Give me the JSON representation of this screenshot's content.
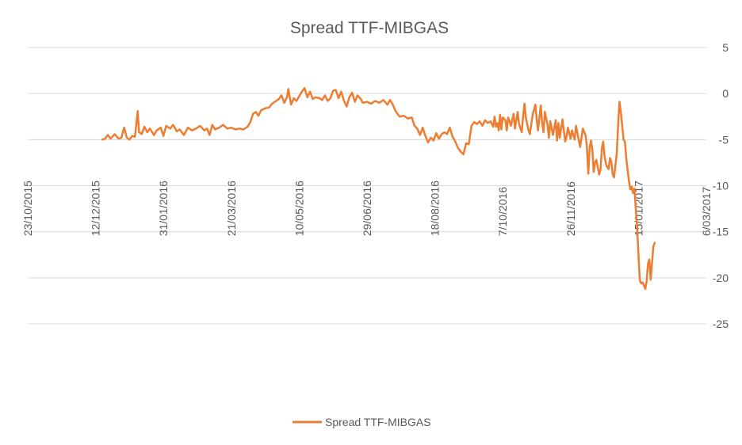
{
  "chart_data": {
    "type": "line",
    "title": "Spread TTF-MIBGAS",
    "xlabel": "",
    "ylabel": "",
    "ylim": [
      -25,
      5
    ],
    "xlim": [
      "2015-10-23",
      "2017-03-06"
    ],
    "y_ticks": [
      5,
      0,
      -5,
      -10,
      -15,
      -20,
      -25
    ],
    "x_ticks": [
      {
        "date": "2015-10-23",
        "label": "23/10/2015"
      },
      {
        "date": "2015-12-12",
        "label": "12/12/2015"
      },
      {
        "date": "2016-01-31",
        "label": "31/01/2016"
      },
      {
        "date": "2016-03-21",
        "label": "21/03/2016"
      },
      {
        "date": "2016-05-10",
        "label": "10/05/2016"
      },
      {
        "date": "2016-06-29",
        "label": "29/06/2016"
      },
      {
        "date": "2016-08-18",
        "label": "18/08/2016"
      },
      {
        "date": "2016-10-07",
        "label": "7/10/2016"
      },
      {
        "date": "2016-11-26",
        "label": "26/11/2016"
      },
      {
        "date": "2017-01-15",
        "label": "15/01/2017"
      },
      {
        "date": "2017-03-06",
        "label": "6/03/2017"
      }
    ],
    "grid": true,
    "legend_position": "bottom",
    "color": "#ED7D31",
    "series": [
      {
        "name": "Spread TTF-MIBGAS",
        "points": [
          [
            "2015-12-17",
            -5.0
          ],
          [
            "2015-12-19",
            -4.9
          ],
          [
            "2015-12-21",
            -4.5
          ],
          [
            "2015-12-23",
            -4.9
          ],
          [
            "2015-12-26",
            -4.4
          ],
          [
            "2015-12-29",
            -4.9
          ],
          [
            "2015-12-31",
            -4.8
          ],
          [
            "2016-01-02",
            -3.7
          ],
          [
            "2016-01-04",
            -4.8
          ],
          [
            "2016-01-06",
            -5.0
          ],
          [
            "2016-01-08",
            -4.6
          ],
          [
            "2016-01-10",
            -4.7
          ],
          [
            "2016-01-12",
            -1.9
          ],
          [
            "2016-01-13",
            -4.2
          ],
          [
            "2016-01-15",
            -4.4
          ],
          [
            "2016-01-17",
            -3.6
          ],
          [
            "2016-01-19",
            -4.2
          ],
          [
            "2016-01-21",
            -3.8
          ],
          [
            "2016-01-24",
            -4.5
          ],
          [
            "2016-01-26",
            -4.0
          ],
          [
            "2016-01-29",
            -3.7
          ],
          [
            "2016-01-31",
            -4.6
          ],
          [
            "2016-02-02",
            -3.5
          ],
          [
            "2016-02-05",
            -3.8
          ],
          [
            "2016-02-07",
            -3.4
          ],
          [
            "2016-02-10",
            -4.1
          ],
          [
            "2016-02-12",
            -3.9
          ],
          [
            "2016-02-15",
            -4.5
          ],
          [
            "2016-02-18",
            -3.7
          ],
          [
            "2016-02-21",
            -4.0
          ],
          [
            "2016-02-24",
            -3.8
          ],
          [
            "2016-02-27",
            -3.5
          ],
          [
            "2016-03-01",
            -4.0
          ],
          [
            "2016-03-03",
            -3.8
          ],
          [
            "2016-03-05",
            -4.5
          ],
          [
            "2016-03-07",
            -3.4
          ],
          [
            "2016-03-09",
            -3.9
          ],
          [
            "2016-03-12",
            -3.7
          ],
          [
            "2016-03-15",
            -3.4
          ],
          [
            "2016-03-18",
            -3.8
          ],
          [
            "2016-03-21",
            -3.7
          ],
          [
            "2016-03-24",
            -3.9
          ],
          [
            "2016-03-27",
            -3.8
          ],
          [
            "2016-03-30",
            -3.9
          ],
          [
            "2016-04-02",
            -3.6
          ],
          [
            "2016-04-04",
            -3.1
          ],
          [
            "2016-04-06",
            -2.2
          ],
          [
            "2016-04-08",
            -2.0
          ],
          [
            "2016-04-10",
            -2.4
          ],
          [
            "2016-04-12",
            -1.8
          ],
          [
            "2016-04-15",
            -1.6
          ],
          [
            "2016-04-18",
            -1.5
          ],
          [
            "2016-04-20",
            -1.1
          ],
          [
            "2016-04-23",
            -0.8
          ],
          [
            "2016-04-25",
            -0.6
          ],
          [
            "2016-04-27",
            -0.2
          ],
          [
            "2016-04-29",
            -1.0
          ],
          [
            "2016-05-01",
            -0.4
          ],
          [
            "2016-05-02",
            0.5
          ],
          [
            "2016-05-04",
            -1.2
          ],
          [
            "2016-05-06",
            -0.5
          ],
          [
            "2016-05-08",
            -0.8
          ],
          [
            "2016-05-10",
            -0.3
          ],
          [
            "2016-05-12",
            0.2
          ],
          [
            "2016-05-14",
            0.6
          ],
          [
            "2016-05-16",
            -0.4
          ],
          [
            "2016-05-18",
            0.2
          ],
          [
            "2016-05-20",
            -0.6
          ],
          [
            "2016-05-22",
            -0.4
          ],
          [
            "2016-05-25",
            -0.5
          ],
          [
            "2016-05-27",
            -0.7
          ],
          [
            "2016-05-29",
            -0.2
          ],
          [
            "2016-05-31",
            -0.8
          ],
          [
            "2016-06-02",
            -0.5
          ],
          [
            "2016-06-04",
            0.3
          ],
          [
            "2016-06-06",
            0.4
          ],
          [
            "2016-06-08",
            -0.5
          ],
          [
            "2016-06-10",
            0.2
          ],
          [
            "2016-06-12",
            -0.8
          ],
          [
            "2016-06-14",
            -1.4
          ],
          [
            "2016-06-16",
            -0.4
          ],
          [
            "2016-06-18",
            0.1
          ],
          [
            "2016-06-20",
            -0.9
          ],
          [
            "2016-06-22",
            -0.2
          ],
          [
            "2016-06-24",
            -0.5
          ],
          [
            "2016-06-26",
            -1.0
          ],
          [
            "2016-06-29",
            -0.9
          ],
          [
            "2016-07-02",
            -1.1
          ],
          [
            "2016-07-05",
            -0.8
          ],
          [
            "2016-07-08",
            -1.0
          ],
          [
            "2016-07-11",
            -0.7
          ],
          [
            "2016-07-14",
            -1.2
          ],
          [
            "2016-07-16",
            -0.7
          ],
          [
            "2016-07-18",
            -1.2
          ],
          [
            "2016-07-20",
            -1.9
          ],
          [
            "2016-07-23",
            -2.5
          ],
          [
            "2016-07-26",
            -2.4
          ],
          [
            "2016-07-29",
            -2.7
          ],
          [
            "2016-08-01",
            -2.6
          ],
          [
            "2016-08-03",
            -3.5
          ],
          [
            "2016-08-05",
            -3.8
          ],
          [
            "2016-08-07",
            -4.5
          ],
          [
            "2016-08-09",
            -3.7
          ],
          [
            "2016-08-11",
            -4.6
          ],
          [
            "2016-08-13",
            -5.3
          ],
          [
            "2016-08-15",
            -4.8
          ],
          [
            "2016-08-17",
            -5.1
          ],
          [
            "2016-08-19",
            -4.3
          ],
          [
            "2016-08-21",
            -4.9
          ],
          [
            "2016-08-23",
            -4.4
          ],
          [
            "2016-08-25",
            -4.2
          ],
          [
            "2016-08-27",
            -4.4
          ],
          [
            "2016-08-29",
            -3.7
          ],
          [
            "2016-08-31",
            -4.7
          ],
          [
            "2016-09-02",
            -5.2
          ],
          [
            "2016-09-04",
            -5.9
          ],
          [
            "2016-09-06",
            -6.3
          ],
          [
            "2016-09-08",
            -6.6
          ],
          [
            "2016-09-10",
            -5.4
          ],
          [
            "2016-09-12",
            -5.5
          ],
          [
            "2016-09-14",
            -3.5
          ],
          [
            "2016-09-16",
            -3.1
          ],
          [
            "2016-09-18",
            -3.3
          ],
          [
            "2016-09-20",
            -3.0
          ],
          [
            "2016-09-22",
            -3.5
          ],
          [
            "2016-09-24",
            -2.9
          ],
          [
            "2016-09-26",
            -3.2
          ],
          [
            "2016-09-28",
            -3.0
          ],
          [
            "2016-09-30",
            -3.6
          ],
          [
            "2016-10-01",
            -2.5
          ],
          [
            "2016-10-02",
            -3.6
          ],
          [
            "2016-10-03",
            -3.2
          ],
          [
            "2016-10-04",
            -4.0
          ],
          [
            "2016-10-05",
            -2.3
          ],
          [
            "2016-10-06",
            -3.9
          ],
          [
            "2016-10-07",
            -2.6
          ],
          [
            "2016-10-09",
            -2.9
          ],
          [
            "2016-10-10",
            -4.0
          ],
          [
            "2016-10-11",
            -2.6
          ],
          [
            "2016-10-12",
            -3.0
          ],
          [
            "2016-10-13",
            -3.5
          ],
          [
            "2016-10-15",
            -2.2
          ],
          [
            "2016-10-16",
            -3.8
          ],
          [
            "2016-10-18",
            -2.0
          ],
          [
            "2016-10-19",
            -3.3
          ],
          [
            "2016-10-21",
            -4.2
          ],
          [
            "2016-10-22",
            -2.4
          ],
          [
            "2016-10-23",
            -1.1
          ],
          [
            "2016-10-24",
            -2.6
          ],
          [
            "2016-10-26",
            -4.0
          ],
          [
            "2016-10-27",
            -4.4
          ],
          [
            "2016-10-29",
            -2.3
          ],
          [
            "2016-10-31",
            -1.2
          ],
          [
            "2016-11-01",
            -2.8
          ],
          [
            "2016-11-02",
            -4.0
          ],
          [
            "2016-11-04",
            -1.3
          ],
          [
            "2016-11-05",
            -3.1
          ],
          [
            "2016-11-06",
            -4.2
          ],
          [
            "2016-11-07",
            -2.0
          ],
          [
            "2016-11-09",
            -3.4
          ],
          [
            "2016-11-10",
            -4.8
          ],
          [
            "2016-11-11",
            -3.0
          ],
          [
            "2016-11-13",
            -4.5
          ],
          [
            "2016-11-15",
            -2.9
          ],
          [
            "2016-11-16",
            -5.1
          ],
          [
            "2016-11-17",
            -3.2
          ],
          [
            "2016-11-18",
            -4.8
          ],
          [
            "2016-11-20",
            -2.8
          ],
          [
            "2016-11-22",
            -5.2
          ],
          [
            "2016-11-23",
            -4.7
          ],
          [
            "2016-11-24",
            -3.7
          ],
          [
            "2016-11-26",
            -4.9
          ],
          [
            "2016-11-27",
            -4.0
          ],
          [
            "2016-11-29",
            -5.0
          ],
          [
            "2016-11-30",
            -3.5
          ],
          [
            "2016-12-01",
            -4.3
          ],
          [
            "2016-12-03",
            -5.8
          ],
          [
            "2016-12-05",
            -3.8
          ],
          [
            "2016-12-07",
            -4.5
          ],
          [
            "2016-12-08",
            -5.7
          ],
          [
            "2016-12-09",
            -8.7
          ],
          [
            "2016-12-10",
            -5.9
          ],
          [
            "2016-12-11",
            -5.1
          ],
          [
            "2016-12-12",
            -6.0
          ],
          [
            "2016-12-13",
            -8.5
          ],
          [
            "2016-12-14",
            -7.5
          ],
          [
            "2016-12-15",
            -7.2
          ],
          [
            "2016-12-17",
            -8.8
          ],
          [
            "2016-12-18",
            -8.3
          ],
          [
            "2016-12-19",
            -6.0
          ],
          [
            "2016-12-20",
            -5.2
          ],
          [
            "2016-12-21",
            -6.8
          ],
          [
            "2016-12-22",
            -7.6
          ],
          [
            "2016-12-23",
            -8.0
          ],
          [
            "2016-12-24",
            -8.2
          ],
          [
            "2016-12-25",
            -7.0
          ],
          [
            "2016-12-26",
            -7.4
          ],
          [
            "2016-12-27",
            -8.8
          ],
          [
            "2016-12-28",
            -9.1
          ],
          [
            "2016-12-30",
            -6.5
          ],
          [
            "2016-12-31",
            -3.5
          ],
          [
            "2017-01-01",
            -0.9
          ],
          [
            "2017-01-02",
            -2.0
          ],
          [
            "2017-01-03",
            -3.5
          ],
          [
            "2017-01-04",
            -5.0
          ],
          [
            "2017-01-05",
            -5.2
          ],
          [
            "2017-01-06",
            -7.0
          ],
          [
            "2017-01-07",
            -8.3
          ],
          [
            "2017-01-08",
            -9.5
          ],
          [
            "2017-01-09",
            -10.4
          ],
          [
            "2017-01-10",
            -10.1
          ],
          [
            "2017-01-11",
            -10.8
          ],
          [
            "2017-01-12",
            -10.3
          ],
          [
            "2017-01-13",
            -12.5
          ],
          [
            "2017-01-14",
            -14.5
          ],
          [
            "2017-01-15",
            -17.5
          ],
          [
            "2017-01-16",
            -20.3
          ],
          [
            "2017-01-17",
            -20.6
          ],
          [
            "2017-01-18",
            -20.5
          ],
          [
            "2017-01-19",
            -20.8
          ],
          [
            "2017-01-20",
            -21.2
          ],
          [
            "2017-01-21",
            -20.4
          ],
          [
            "2017-01-22",
            -18.5
          ],
          [
            "2017-01-23",
            -18.0
          ],
          [
            "2017-01-24",
            -20.2
          ],
          [
            "2017-01-25",
            -18.4
          ],
          [
            "2017-01-26",
            -16.6
          ],
          [
            "2017-01-27",
            -16.2
          ]
        ]
      }
    ]
  }
}
